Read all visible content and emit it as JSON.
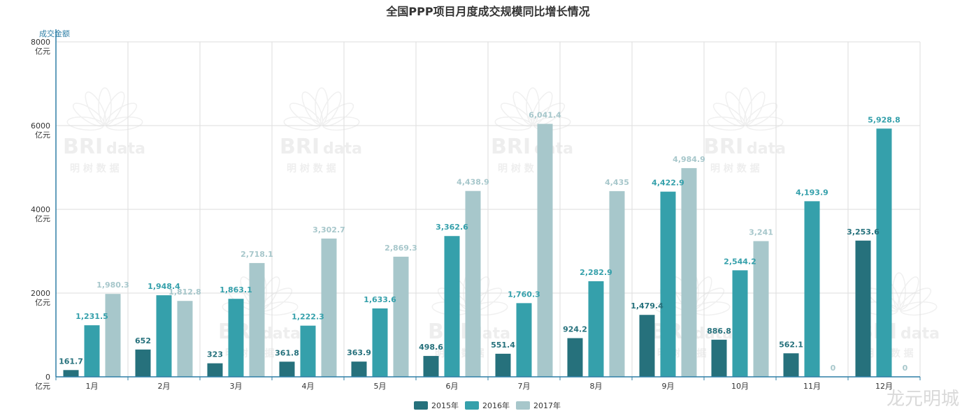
{
  "chart_data": {
    "type": "bar",
    "title": "全国PPP项目月度成交规模同比增长情况",
    "ylabel": "成交金额",
    "y_unit": "亿元",
    "ylim": [
      0,
      8000
    ],
    "yticks": [
      0,
      2000,
      4000,
      6000,
      8000
    ],
    "grid": true,
    "legend_position": "bottom",
    "categories": [
      "1月",
      "2月",
      "3月",
      "4月",
      "5月",
      "6月",
      "7月",
      "8月",
      "9月",
      "10月",
      "11月",
      "12月"
    ],
    "series": [
      {
        "name": "2015年",
        "color": "#26717c",
        "values": [
          161.7,
          652,
          323,
          361.8,
          363.9,
          498.6,
          551.4,
          924.2,
          1479.4,
          886.8,
          562.1,
          3253.6
        ],
        "labels": [
          "161.7",
          "652",
          "323",
          "361.8",
          "363.9",
          "498.6",
          "551.4",
          "924.2",
          "1,479.4",
          "886.8",
          "562.1",
          "3,253.6"
        ]
      },
      {
        "name": "2016年",
        "color": "#35a0ab",
        "values": [
          1231.5,
          1948.4,
          1863.1,
          1222.3,
          1633.6,
          3362.6,
          1760.3,
          2282.9,
          4422.9,
          2544.2,
          4193.9,
          5928.8
        ],
        "labels": [
          "1,231.5",
          "1,948.4",
          "1,863.1",
          "1,222.3",
          "1,633.6",
          "3,362.6",
          "1,760.3",
          "2,282.9",
          "4,422.9",
          "2,544.2",
          "4,193.9",
          "5,928.8"
        ]
      },
      {
        "name": "2017年",
        "color": "#a7c7cb",
        "values": [
          1980.3,
          1812.8,
          2718.1,
          3302.7,
          2869.3,
          4438.9,
          6041.4,
          4435,
          4984.9,
          3241,
          0,
          0
        ],
        "labels": [
          "1,980.3",
          "1,812.8",
          "2,718.1",
          "3,302.7",
          "2,869.3",
          "4,438.9",
          "6,041.4",
          "4,435",
          "4,984.9",
          "3,241",
          "0",
          "0"
        ]
      }
    ]
  },
  "watermark": {
    "brand": "BRI",
    "brand_suffix": "data",
    "chinese": "明 树 数 据"
  },
  "corner_text": "龙元明城"
}
